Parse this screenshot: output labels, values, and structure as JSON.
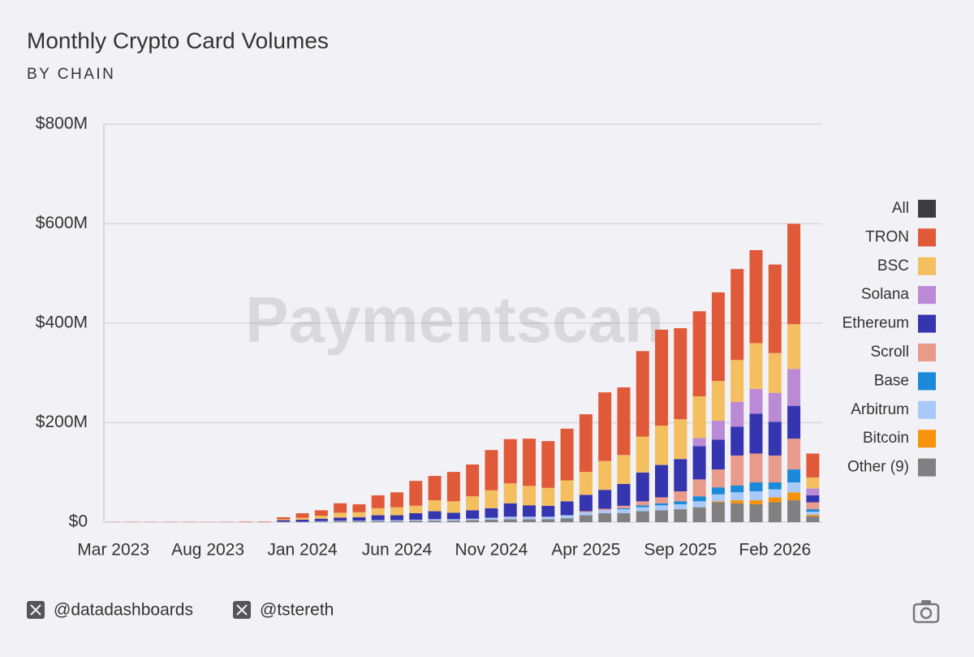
{
  "chart_data": {
    "type": "stacked_bar",
    "title": "Monthly Crypto Card Volumes",
    "subtitle": "BY CHAIN",
    "watermark": "Paymentscan",
    "categories": [
      "Mar 2023",
      null,
      null,
      null,
      null,
      "Aug 2023",
      null,
      null,
      null,
      null,
      "Jan 2024",
      null,
      null,
      null,
      null,
      "Jun 2024",
      null,
      null,
      null,
      null,
      "Nov 2024",
      null,
      null,
      null,
      null,
      "Apr 2025",
      null,
      null,
      null,
      null,
      "Sep 2025",
      null,
      null,
      null,
      null,
      "Feb 2026",
      null,
      null
    ],
    "ylim": [
      0,
      800
    ],
    "yticks": [
      {
        "value": 0,
        "label": "$0"
      },
      {
        "value": 200,
        "label": "$200M"
      },
      {
        "value": 400,
        "label": "$400M"
      },
      {
        "value": 600,
        "label": "$600M"
      },
      {
        "value": 800,
        "label": "$800M"
      }
    ],
    "grid": true,
    "legend": "right",
    "legend_all": {
      "name": "All",
      "color": "#3d3d3d"
    },
    "series": [
      {
        "name": "Other (9)",
        "color": "#808080",
        "values": [
          0,
          0,
          0,
          0,
          0,
          0,
          0,
          0,
          0,
          1,
          1,
          1,
          2,
          2,
          2,
          2,
          3,
          3,
          3,
          4,
          5,
          6,
          6,
          6,
          8,
          14,
          18,
          18,
          22,
          24,
          26,
          30,
          40,
          38,
          36,
          40,
          44,
          12
        ]
      },
      {
        "name": "Bitcoin",
        "color": "#f7930a",
        "values": [
          0,
          0,
          0,
          0,
          0,
          0,
          0,
          0,
          0,
          0,
          0,
          0,
          0,
          0,
          0,
          0,
          0,
          0,
          0,
          0,
          0,
          0,
          0,
          0,
          0,
          0,
          0,
          0,
          0,
          0,
          0,
          0,
          2,
          6,
          8,
          10,
          16,
          3
        ]
      },
      {
        "name": "Arbitrum",
        "color": "#a9c9f8",
        "values": [
          0,
          0,
          0,
          0,
          0,
          0,
          0,
          0,
          0,
          0,
          0,
          1,
          1,
          1,
          2,
          2,
          2,
          3,
          3,
          3,
          4,
          5,
          5,
          5,
          6,
          6,
          6,
          8,
          8,
          10,
          10,
          12,
          14,
          16,
          18,
          16,
          20,
          6
        ]
      },
      {
        "name": "Base",
        "color": "#1a8ad8",
        "values": [
          0,
          0,
          0,
          0,
          0,
          0,
          0,
          0,
          0,
          0,
          0,
          0,
          0,
          0,
          0,
          0,
          0,
          0,
          0,
          0,
          0,
          0,
          0,
          0,
          0,
          0,
          0,
          2,
          4,
          4,
          6,
          10,
          14,
          14,
          18,
          14,
          26,
          5
        ]
      },
      {
        "name": "Scroll",
        "color": "#e89b8b",
        "values": [
          0,
          0,
          0,
          0,
          0,
          0,
          0,
          0,
          0,
          0,
          0,
          0,
          0,
          0,
          0,
          0,
          0,
          0,
          0,
          0,
          0,
          0,
          0,
          0,
          0,
          2,
          3,
          5,
          8,
          12,
          20,
          34,
          36,
          60,
          58,
          54,
          62,
          14
        ]
      },
      {
        "name": "Ethereum",
        "color": "#3535b0",
        "values": [
          0,
          0,
          0,
          0,
          0,
          0,
          0,
          0,
          0,
          3,
          4,
          5,
          6,
          7,
          10,
          10,
          13,
          16,
          13,
          17,
          19,
          27,
          23,
          22,
          28,
          33,
          38,
          44,
          58,
          65,
          65,
          67,
          60,
          58,
          80,
          68,
          66,
          14
        ]
      },
      {
        "name": "Solana",
        "color": "#bb8ad6",
        "values": [
          0,
          0,
          0,
          0,
          0,
          0,
          0,
          0,
          0,
          0,
          0,
          0,
          0,
          0,
          0,
          0,
          0,
          0,
          0,
          0,
          0,
          0,
          0,
          0,
          0,
          0,
          0,
          0,
          0,
          0,
          0,
          16,
          38,
          50,
          50,
          58,
          74,
          14
        ]
      },
      {
        "name": "BSC",
        "color": "#f4bf5f",
        "values": [
          0,
          0,
          0,
          0,
          0,
          0,
          0,
          0,
          0,
          2,
          4,
          6,
          10,
          10,
          14,
          16,
          15,
          22,
          23,
          28,
          36,
          40,
          39,
          36,
          42,
          46,
          58,
          58,
          72,
          79,
          80,
          84,
          80,
          84,
          92,
          80,
          90,
          22
        ]
      },
      {
        "name": "TRON",
        "color": "#e05a3a",
        "values": [
          0.5,
          0.5,
          0.5,
          0.5,
          0.5,
          0.5,
          0.5,
          1,
          1,
          4,
          9,
          11,
          19,
          16,
          26,
          30,
          50,
          49,
          59,
          64,
          81,
          89,
          95,
          94,
          104,
          116,
          138,
          136,
          172,
          193,
          183,
          171,
          178,
          183,
          187,
          178,
          202,
          48
        ]
      }
    ]
  },
  "footer": {
    "handles": [
      "@datadashboards",
      "@tstereth"
    ]
  }
}
